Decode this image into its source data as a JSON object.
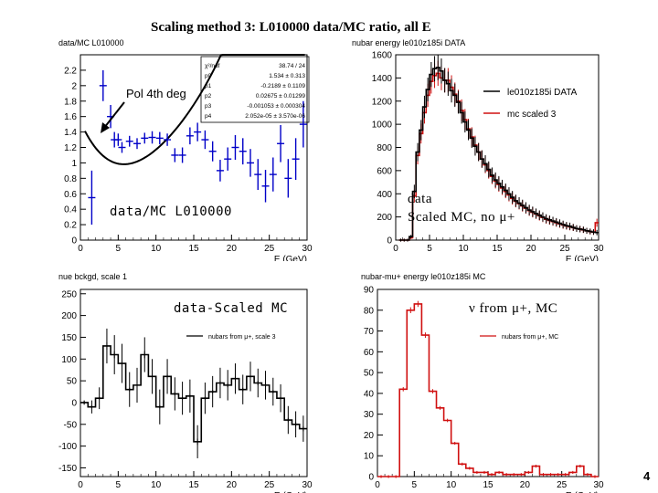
{
  "slide": {
    "title": "Scaling method 3: L010000 data/MC ratio, all E",
    "page_number": "4"
  },
  "colors": {
    "data": "#000000",
    "mc": "#d01010",
    "ratio": "#0000c8",
    "fit": "#000000"
  },
  "annotations": {
    "pol4": "Pol 4th deg",
    "ratio_label": "data/MC L010000",
    "legend_data": "data",
    "legend_scaled": "Scaled MC, no μ+",
    "data_minus_scaled": "data-Scaled MC",
    "nubar_from_mu": "ν from μ+, MC"
  },
  "fit_box": {
    "rows": [
      {
        "name": "χ²/ndf",
        "value": "38.74 / 24"
      },
      {
        "name": "p0",
        "value": "1.534 ± 0.313"
      },
      {
        "name": "p1",
        "value": "-0.2189 ± 0.1109"
      },
      {
        "name": "p2",
        "value": "0.02675 ± 0.01299"
      },
      {
        "name": "p3",
        "value": "-0.001053 ± 0.000304"
      },
      {
        "name": "p4",
        "value": "2.052e-05 ± 3.570e-06"
      }
    ]
  },
  "chart_data": [
    {
      "type": "scatter",
      "panel": "top-left",
      "hist_title": "data/MC L010000",
      "xlabel": "E (GeV)",
      "xlim": [
        0,
        30
      ],
      "ylim": [
        0,
        2.4
      ],
      "xticks": [
        0,
        5,
        10,
        15,
        20,
        25,
        30
      ],
      "yticks": [
        0,
        0.2,
        0.4,
        0.6,
        0.8,
        1,
        1.2,
        1.4,
        1.6,
        1.8,
        2,
        2.2
      ],
      "ytick_labels": [
        "0",
        "0.2",
        "0.4",
        "0.6",
        "0.8",
        "1",
        "1.2",
        "1.4",
        "1.6",
        "1.8",
        "2",
        "2.2"
      ],
      "xtick_labels": [
        "0",
        "5",
        "10",
        "15",
        "20",
        "25",
        "30"
      ],
      "series": [
        {
          "name": "data/MC ratio",
          "x": [
            1.5,
            3,
            4,
            4.5,
            5,
            5.5,
            6.5,
            7.5,
            8.5,
            9.5,
            10.5,
            11.5,
            12.5,
            13.5,
            14.5,
            15.5,
            16.5,
            17.5,
            18.5,
            19.5,
            20.5,
            21.5,
            22.5,
            23.5,
            24.5,
            25.5,
            26.5,
            27.5,
            28.5,
            29.5
          ],
          "y": [
            0.55,
            2.0,
            1.6,
            1.3,
            1.3,
            1.2,
            1.28,
            1.25,
            1.32,
            1.33,
            1.32,
            1.3,
            1.1,
            1.1,
            1.35,
            1.4,
            1.3,
            1.15,
            0.9,
            1.05,
            1.2,
            1.15,
            1.0,
            0.85,
            0.7,
            0.85,
            1.25,
            0.8,
            1.05,
            1.5
          ],
          "err": [
            0.35,
            0.2,
            0.15,
            0.1,
            0.08,
            0.07,
            0.07,
            0.07,
            0.07,
            0.08,
            0.08,
            0.08,
            0.09,
            0.1,
            0.11,
            0.12,
            0.12,
            0.13,
            0.14,
            0.15,
            0.16,
            0.17,
            0.18,
            0.2,
            0.21,
            0.22,
            0.24,
            0.25,
            0.27,
            0.3
          ]
        },
        {
          "name": "Pol 4th deg fit",
          "coeffs": [
            1.534,
            -0.2189,
            0.02675,
            -0.001053,
            2.052e-05
          ]
        }
      ]
    },
    {
      "type": "bar",
      "panel": "top-right",
      "hist_title": "nubar energy le010z185i DATA",
      "xlabel": "E (GeV)",
      "xlim": [
        0,
        30
      ],
      "ylim": [
        0,
        1600
      ],
      "xticks": [
        0,
        5,
        10,
        15,
        20,
        25,
        30
      ],
      "yticks": [
        0,
        200,
        400,
        600,
        800,
        1000,
        1200,
        1400,
        1600
      ],
      "ytick_labels": [
        "0",
        "200",
        "400",
        "600",
        "800",
        "1000",
        "1200",
        "1400",
        "1600"
      ],
      "xtick_labels": [
        "0",
        "5",
        "10",
        "15",
        "20",
        "25",
        "30"
      ],
      "legend": [
        "le010z185i DATA",
        "mc scaled 3"
      ],
      "series": [
        {
          "name": "le010z185i DATA",
          "x": [
            0.75,
            1.25,
            1.75,
            2.25,
            2.75,
            3.25,
            3.75,
            4.25,
            4.75,
            5.25,
            5.75,
            6.25,
            6.75,
            7.25,
            7.75,
            8.25,
            8.75,
            9.25,
            9.75,
            10.25,
            10.75,
            11.25,
            11.75,
            12.25,
            12.75,
            13.25,
            13.75,
            14.25,
            14.75,
            15.25,
            15.75,
            16.25,
            16.75,
            17.25,
            17.75,
            18.25,
            18.75,
            19.25,
            19.75,
            20.25,
            20.75,
            21.25,
            21.75,
            22.25,
            22.75,
            23.25,
            23.75,
            24.25,
            24.75,
            25.25,
            25.75,
            26.25,
            26.75,
            27.25,
            27.75,
            28.25,
            28.75,
            29.25,
            29.75
          ],
          "y": [
            0,
            0,
            0,
            30,
            420,
            760,
            950,
            1150,
            1300,
            1430,
            1480,
            1490,
            1460,
            1380,
            1350,
            1290,
            1250,
            1190,
            1100,
            1020,
            950,
            880,
            810,
            760,
            700,
            660,
            610,
            560,
            520,
            490,
            460,
            430,
            400,
            370,
            340,
            320,
            300,
            280,
            260,
            245,
            230,
            215,
            200,
            185,
            175,
            165,
            155,
            145,
            135,
            125,
            120,
            110,
            100,
            95,
            90,
            80,
            75,
            70,
            65
          ]
        },
        {
          "name": "mc scaled 3",
          "x": [
            0.75,
            1.25,
            1.75,
            2.25,
            2.75,
            3.25,
            3.75,
            4.25,
            4.75,
            5.25,
            5.75,
            6.25,
            6.75,
            7.25,
            7.75,
            8.25,
            8.75,
            9.25,
            9.75,
            10.25,
            10.75,
            11.25,
            11.75,
            12.25,
            12.75,
            13.25,
            13.75,
            14.25,
            14.75,
            15.25,
            15.75,
            16.25,
            16.75,
            17.25,
            17.75,
            18.25,
            18.75,
            19.25,
            19.75,
            20.25,
            20.75,
            21.25,
            21.75,
            22.25,
            22.75,
            23.25,
            23.75,
            24.25,
            24.75,
            25.25,
            25.75,
            26.25,
            26.75,
            27.25,
            27.75,
            28.25,
            28.75,
            29.25,
            29.75
          ],
          "y": [
            0,
            0,
            0,
            20,
            380,
            730,
            920,
            1100,
            1250,
            1370,
            1420,
            1440,
            1400,
            1380,
            1380,
            1320,
            1260,
            1200,
            1120,
            1040,
            960,
            890,
            820,
            760,
            700,
            650,
            600,
            550,
            510,
            480,
            450,
            420,
            390,
            360,
            335,
            315,
            295,
            275,
            255,
            240,
            225,
            210,
            195,
            180,
            170,
            160,
            150,
            140,
            130,
            122,
            115,
            108,
            100,
            95,
            88,
            80,
            74,
            68,
            150
          ]
        }
      ]
    },
    {
      "type": "bar",
      "panel": "bottom-left",
      "hist_title": "nue bckgd, scale 1",
      "xlabel": "E (GeV)",
      "xlim": [
        0,
        30
      ],
      "ylim": [
        -170,
        260
      ],
      "xticks": [
        0,
        5,
        10,
        15,
        20,
        25,
        30
      ],
      "yticks": [
        -150,
        -100,
        -50,
        0,
        50,
        100,
        150,
        200,
        250
      ],
      "ytick_labels": [
        "-150",
        "-100",
        "-50",
        "0",
        "50",
        "100",
        "150",
        "200",
        "250"
      ],
      "xtick_labels": [
        "0",
        "5",
        "10",
        "15",
        "20",
        "25",
        "30"
      ],
      "legend": [
        "nubars from μ+, scale 3"
      ],
      "series": [
        {
          "name": "data - scaled MC",
          "x": [
            0.5,
            1.5,
            2.5,
            3.5,
            4.5,
            5.5,
            6.5,
            7.5,
            8.5,
            9.5,
            10.5,
            11.5,
            12.5,
            13.5,
            14.5,
            15.5,
            16.5,
            17.5,
            18.5,
            19.5,
            20.5,
            21.5,
            22.5,
            23.5,
            24.5,
            25.5,
            26.5,
            27.5,
            28.5,
            29.5
          ],
          "y": [
            0,
            -10,
            10,
            130,
            110,
            90,
            30,
            40,
            110,
            60,
            -10,
            60,
            20,
            10,
            15,
            -90,
            10,
            25,
            45,
            40,
            55,
            30,
            60,
            45,
            40,
            25,
            10,
            -40,
            -50,
            -60
          ],
          "err": [
            5,
            15,
            25,
            40,
            45,
            45,
            40,
            40,
            40,
            40,
            40,
            40,
            38,
            38,
            38,
            38,
            36,
            36,
            35,
            35,
            35,
            34,
            34,
            33,
            33,
            32,
            32,
            32,
            30,
            30
          ]
        }
      ]
    },
    {
      "type": "bar",
      "panel": "bottom-right",
      "hist_title": "nubar-mu+ energy le010z185i MC",
      "xlabel": "E (GeV)",
      "xlim": [
        0,
        30
      ],
      "ylim": [
        0,
        90
      ],
      "xticks": [
        0,
        5,
        10,
        15,
        20,
        25,
        30
      ],
      "yticks": [
        0,
        10,
        20,
        30,
        40,
        50,
        60,
        70,
        80,
        90
      ],
      "ytick_labels": [
        "0",
        "10",
        "20",
        "30",
        "40",
        "50",
        "60",
        "70",
        "80",
        "90"
      ],
      "xtick_labels": [
        "0",
        "5",
        "10",
        "15",
        "20",
        "25",
        "30"
      ],
      "legend": [
        "nubars from μ+, MC"
      ],
      "series": [
        {
          "name": "nubars from μ+, MC",
          "x": [
            0.5,
            1.5,
            2.5,
            3.5,
            4.5,
            5.5,
            6.5,
            7.5,
            8.5,
            9.5,
            10.5,
            11.5,
            12.5,
            13.5,
            14.5,
            15.5,
            16.5,
            17.5,
            18.5,
            19.5,
            20.5,
            21.5,
            22.5,
            23.5,
            24.5,
            25.5,
            26.5,
            27.5,
            28.5,
            29.5
          ],
          "y": [
            0,
            0,
            0,
            42,
            80,
            83,
            68,
            41,
            33,
            27,
            16,
            6,
            4,
            2,
            2,
            1,
            2,
            1,
            1,
            1,
            2,
            5,
            1,
            1,
            1,
            1,
            2,
            5,
            1,
            0
          ]
        }
      ]
    }
  ]
}
